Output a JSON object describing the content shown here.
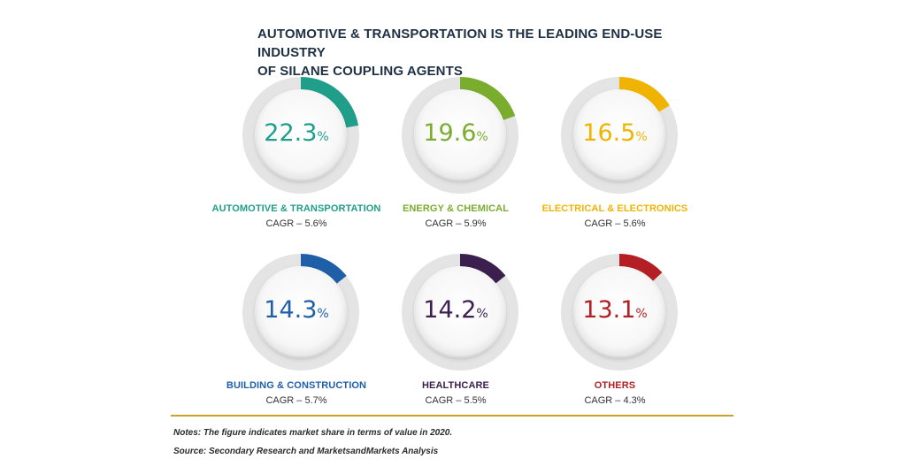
{
  "title": {
    "line1": "AUTOMOTIVE & TRANSPORTATION IS THE LEADING END-USE INDUSTRY",
    "line2": "OF SILANE COUPLING AGENTS"
  },
  "pct_suffix": "%",
  "chart_data": {
    "type": "pie",
    "title": "AUTOMOTIVE & TRANSPORTATION IS THE LEADING END-USE INDUSTRY OF SILANE COUPLING AGENTS",
    "segments": [
      {
        "label": "AUTOMOTIVE & TRANSPORTATION",
        "value": 22.3,
        "value_text": "22.3",
        "cagr": "CAGR – 5.6%",
        "color": "#1f9e8a"
      },
      {
        "label": "ENERGY & CHEMICAL",
        "value": 19.6,
        "value_text": "19.6",
        "cagr": "CAGR – 5.9%",
        "color": "#7aac2e"
      },
      {
        "label": "ELECTRICAL & ELECTRONICS",
        "value": 16.5,
        "value_text": "16.5",
        "cagr": "CAGR – 5.6%",
        "color": "#f0b400"
      },
      {
        "label": "BUILDING & CONSTRUCTION",
        "value": 14.3,
        "value_text": "14.3",
        "cagr": "CAGR – 5.7%",
        "color": "#1f5fa8"
      },
      {
        "label": "HEALTHCARE",
        "value": 14.2,
        "value_text": "14.2",
        "cagr": "CAGR – 5.5%",
        "color": "#3b1f4e"
      },
      {
        "label": "OTHERS",
        "value": 13.1,
        "value_text": "13.1",
        "cagr": "CAGR – 4.3%",
        "color": "#b31f24"
      }
    ],
    "ring_background": "#e4e4e4"
  },
  "notes": {
    "note": "Notes: The figure indicates market share in terms of value in 2020.",
    "source": "Source: Secondary Research and MarketsandMarkets Analysis"
  }
}
